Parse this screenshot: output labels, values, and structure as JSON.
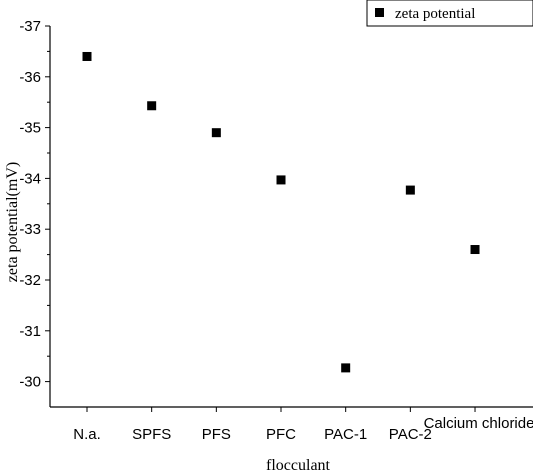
{
  "chart_data": {
    "type": "scatter",
    "categories": [
      "N.a.",
      "SPFS",
      "PFS",
      "PFC",
      "PAC-1",
      "PAC-2",
      "Calcium chloride"
    ],
    "series": [
      {
        "name": "zeta potential",
        "values": [
          -36.4,
          -35.43,
          -34.9,
          -33.97,
          -30.27,
          -33.77,
          -32.6
        ],
        "color": "#000000",
        "marker": "square"
      }
    ],
    "xlabel": "flocculant",
    "ylabel": "zeta potential(mV)",
    "ylim": [
      -29.5,
      -37.0
    ],
    "yticks": [
      -30,
      -31,
      -32,
      -33,
      -34,
      -35,
      -36,
      -37
    ],
    "grid": false,
    "legend": "top-right"
  }
}
